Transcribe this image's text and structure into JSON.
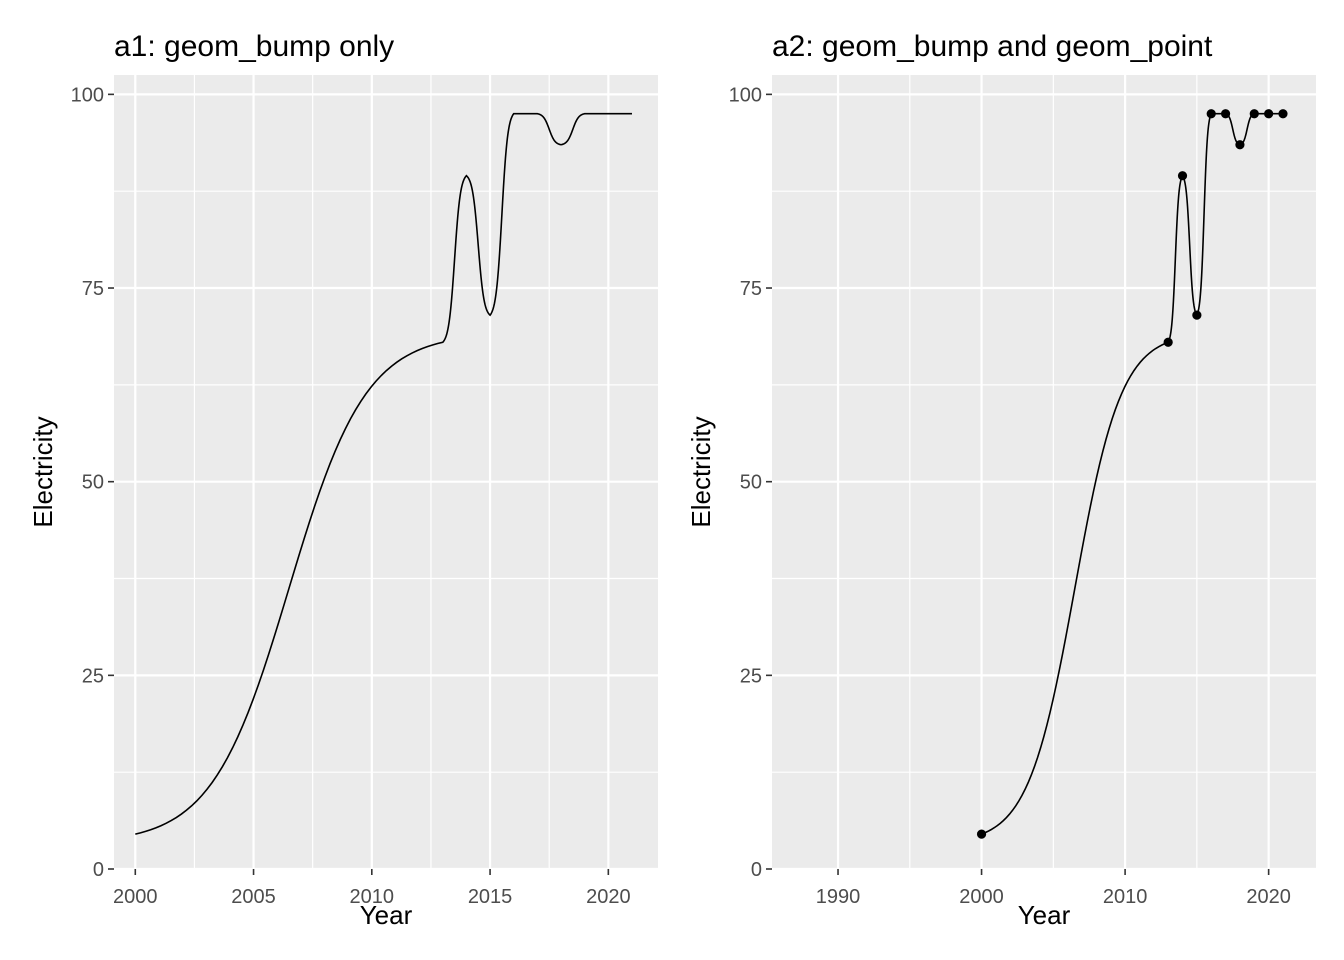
{
  "chart_data": [
    {
      "type": "line",
      "title": "a1: geom_bump only",
      "xlabel": "Year",
      "ylabel": "Electricity",
      "xlim": [
        1999.1,
        2022.1
      ],
      "ylim": [
        0,
        102.5
      ],
      "xticks": [
        2000,
        2005,
        2010,
        2015,
        2020
      ],
      "yticks": [
        0,
        25,
        50,
        75,
        100
      ],
      "xtick_labels": [
        "2000",
        "2005",
        "2010",
        "2015",
        "2020"
      ],
      "ytick_labels": [
        "0",
        "25",
        "50",
        "75",
        "100"
      ],
      "grid": true,
      "points_shown": false,
      "series": [
        {
          "x": [
            2000,
            2013,
            2014,
            2015,
            2016,
            2017,
            2018,
            2019,
            2020,
            2021
          ],
          "y": [
            4.5,
            68.0,
            89.5,
            71.5,
            97.5,
            97.5,
            93.5,
            97.5,
            97.5,
            97.5
          ]
        }
      ]
    },
    {
      "type": "line",
      "title": "a2: geom_bump and geom_point",
      "xlabel": "Year",
      "ylabel": "Electricity",
      "xlim": [
        1985.4,
        2023.3
      ],
      "ylim": [
        0,
        102.5
      ],
      "xticks": [
        1990,
        2000,
        2010,
        2020
      ],
      "yticks": [
        0,
        25,
        50,
        75,
        100
      ],
      "xtick_labels": [
        "1990",
        "2000",
        "2010",
        "2020"
      ],
      "ytick_labels": [
        "0",
        "25",
        "50",
        "75",
        "100"
      ],
      "grid": true,
      "points_shown": true,
      "series": [
        {
          "x": [
            2000,
            2013,
            2014,
            2015,
            2016,
            2017,
            2018,
            2019,
            2020,
            2021
          ],
          "y": [
            4.5,
            68.0,
            89.5,
            71.5,
            97.5,
            97.5,
            93.5,
            97.5,
            97.5,
            97.5
          ]
        }
      ]
    }
  ],
  "colors": {
    "panel_background": "#ebebeb",
    "grid_major": "#ffffff",
    "line": "#000000",
    "tick_label": "#4d4d4d",
    "tick_mark": "#333333"
  }
}
